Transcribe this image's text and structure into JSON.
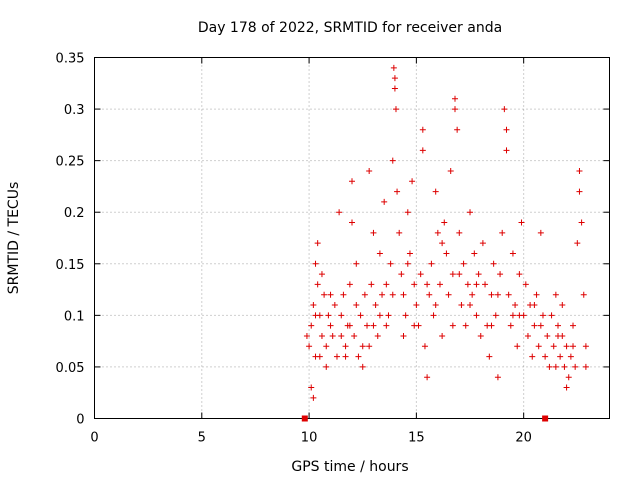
{
  "chart_data": {
    "type": "scatter",
    "title": "Day 178 of 2022, SRMTID for receiver anda",
    "xlabel": "GPS time / hours",
    "ylabel": "SRMTID / TECUs",
    "xlim": [
      0,
      24
    ],
    "ylim": [
      0,
      0.35
    ],
    "grid": true,
    "x_ticks": [
      0,
      5,
      10,
      15,
      20
    ],
    "x_tick_labels": [
      "0",
      "5",
      "10",
      "15",
      "20"
    ],
    "y_ticks": [
      0,
      0.05,
      0.1,
      0.15,
      0.2,
      0.25,
      0.3,
      0.35
    ],
    "y_tick_labels": [
      "0",
      "0.05",
      "0.1",
      "0.15",
      "0.2",
      "0.25",
      "0.3",
      "0.35"
    ],
    "series_color": "#dd0000",
    "marker": "plus",
    "markers_on_axis": [
      {
        "x": 9.8,
        "y": 0
      },
      {
        "x": 21.0,
        "y": 0
      }
    ],
    "series": [
      {
        "name": "SRMTID",
        "points": [
          [
            9.9,
            0.08
          ],
          [
            10.0,
            0.07
          ],
          [
            10.1,
            0.09
          ],
          [
            10.2,
            0.11
          ],
          [
            10.3,
            0.06
          ],
          [
            10.4,
            0.13
          ],
          [
            10.5,
            0.1
          ],
          [
            10.6,
            0.08
          ],
          [
            10.7,
            0.12
          ],
          [
            10.8,
            0.07
          ],
          [
            10.1,
            0.03
          ],
          [
            10.2,
            0.02
          ],
          [
            10.3,
            0.15
          ],
          [
            10.4,
            0.17
          ],
          [
            10.6,
            0.14
          ],
          [
            10.9,
            0.1
          ],
          [
            11.0,
            0.09
          ],
          [
            11.1,
            0.08
          ],
          [
            11.2,
            0.11
          ],
          [
            11.3,
            0.06
          ],
          [
            11.4,
            0.2
          ],
          [
            11.5,
            0.1
          ],
          [
            11.6,
            0.12
          ],
          [
            11.7,
            0.07
          ],
          [
            11.8,
            0.09
          ],
          [
            11.9,
            0.13
          ],
          [
            12.0,
            0.23
          ],
          [
            12.0,
            0.19
          ],
          [
            12.1,
            0.08
          ],
          [
            12.2,
            0.15
          ],
          [
            12.3,
            0.06
          ],
          [
            12.4,
            0.1
          ],
          [
            12.5,
            0.05
          ],
          [
            12.6,
            0.12
          ],
          [
            12.7,
            0.09
          ],
          [
            12.8,
            0.24
          ],
          [
            12.9,
            0.13
          ],
          [
            13.0,
            0.18
          ],
          [
            13.1,
            0.11
          ],
          [
            13.2,
            0.08
          ],
          [
            13.3,
            0.16
          ],
          [
            13.4,
            0.12
          ],
          [
            13.5,
            0.21
          ],
          [
            13.6,
            0.13
          ],
          [
            13.7,
            0.1
          ],
          [
            13.8,
            0.15
          ],
          [
            13.9,
            0.25
          ],
          [
            13.95,
            0.34
          ],
          [
            14.0,
            0.33
          ],
          [
            14.0,
            0.32
          ],
          [
            14.05,
            0.3
          ],
          [
            14.1,
            0.22
          ],
          [
            14.2,
            0.18
          ],
          [
            14.3,
            0.14
          ],
          [
            14.4,
            0.12
          ],
          [
            14.5,
            0.1
          ],
          [
            14.6,
            0.2
          ],
          [
            14.7,
            0.16
          ],
          [
            14.8,
            0.23
          ],
          [
            14.9,
            0.13
          ],
          [
            15.0,
            0.11
          ],
          [
            15.1,
            0.09
          ],
          [
            15.2,
            0.14
          ],
          [
            15.3,
            0.28
          ],
          [
            15.3,
            0.26
          ],
          [
            15.4,
            0.07
          ],
          [
            15.5,
            0.04
          ],
          [
            15.6,
            0.12
          ],
          [
            15.7,
            0.15
          ],
          [
            15.8,
            0.1
          ],
          [
            15.9,
            0.22
          ],
          [
            16.0,
            0.18
          ],
          [
            16.1,
            0.13
          ],
          [
            16.2,
            0.08
          ],
          [
            16.3,
            0.19
          ],
          [
            16.4,
            0.16
          ],
          [
            16.5,
            0.12
          ],
          [
            16.6,
            0.24
          ],
          [
            16.7,
            0.14
          ],
          [
            16.8,
            0.31
          ],
          [
            16.8,
            0.3
          ],
          [
            16.9,
            0.28
          ],
          [
            17.0,
            0.18
          ],
          [
            17.1,
            0.11
          ],
          [
            17.2,
            0.15
          ],
          [
            17.3,
            0.09
          ],
          [
            17.4,
            0.13
          ],
          [
            17.5,
            0.2
          ],
          [
            17.6,
            0.12
          ],
          [
            17.7,
            0.16
          ],
          [
            17.8,
            0.1
          ],
          [
            17.9,
            0.14
          ],
          [
            18.0,
            0.08
          ],
          [
            18.1,
            0.17
          ],
          [
            18.2,
            0.13
          ],
          [
            18.3,
            0.09
          ],
          [
            18.4,
            0.06
          ],
          [
            18.5,
            0.12
          ],
          [
            18.6,
            0.15
          ],
          [
            18.7,
            0.1
          ],
          [
            18.8,
            0.04
          ],
          [
            18.9,
            0.14
          ],
          [
            19.0,
            0.18
          ],
          [
            19.1,
            0.3
          ],
          [
            19.2,
            0.28
          ],
          [
            19.2,
            0.26
          ],
          [
            19.3,
            0.12
          ],
          [
            19.4,
            0.09
          ],
          [
            19.5,
            0.16
          ],
          [
            19.6,
            0.11
          ],
          [
            19.7,
            0.07
          ],
          [
            19.8,
            0.14
          ],
          [
            19.9,
            0.19
          ],
          [
            20.0,
            0.1
          ],
          [
            20.1,
            0.13
          ],
          [
            20.2,
            0.08
          ],
          [
            20.3,
            0.11
          ],
          [
            20.4,
            0.06
          ],
          [
            20.5,
            0.09
          ],
          [
            20.6,
            0.12
          ],
          [
            20.7,
            0.07
          ],
          [
            20.8,
            0.18
          ],
          [
            20.9,
            0.1
          ],
          [
            21.0,
            0.06
          ],
          [
            21.1,
            0.08
          ],
          [
            21.2,
            0.05
          ],
          [
            21.3,
            0.1
          ],
          [
            21.4,
            0.07
          ],
          [
            21.5,
            0.12
          ],
          [
            21.6,
            0.09
          ],
          [
            21.7,
            0.06
          ],
          [
            21.8,
            0.08
          ],
          [
            21.9,
            0.05
          ],
          [
            22.0,
            0.07
          ],
          [
            22.1,
            0.04
          ],
          [
            22.2,
            0.06
          ],
          [
            22.3,
            0.09
          ],
          [
            22.4,
            0.05
          ],
          [
            22.5,
            0.17
          ],
          [
            22.6,
            0.24
          ],
          [
            22.6,
            0.22
          ],
          [
            22.7,
            0.19
          ],
          [
            22.8,
            0.12
          ],
          [
            22.9,
            0.07
          ],
          [
            22.9,
            0.05
          ],
          [
            22.0,
            0.03
          ],
          [
            21.8,
            0.11
          ],
          [
            21.5,
            0.05
          ],
          [
            12.5,
            0.07
          ],
          [
            13.0,
            0.09
          ],
          [
            10.5,
            0.06
          ],
          [
            11.0,
            0.12
          ],
          [
            11.5,
            0.08
          ],
          [
            12.2,
            0.11
          ],
          [
            13.6,
            0.09
          ],
          [
            14.4,
            0.08
          ],
          [
            15.9,
            0.11
          ],
          [
            16.7,
            0.09
          ],
          [
            17.5,
            0.11
          ],
          [
            18.5,
            0.09
          ],
          [
            19.5,
            0.1
          ],
          [
            20.5,
            0.11
          ],
          [
            10.8,
            0.05
          ],
          [
            11.7,
            0.06
          ],
          [
            12.8,
            0.07
          ],
          [
            13.9,
            0.12
          ],
          [
            14.9,
            0.09
          ],
          [
            15.5,
            0.13
          ],
          [
            16.2,
            0.17
          ],
          [
            17.0,
            0.14
          ],
          [
            17.8,
            0.13
          ],
          [
            18.8,
            0.12
          ],
          [
            19.8,
            0.1
          ],
          [
            20.8,
            0.09
          ],
          [
            21.6,
            0.08
          ],
          [
            22.3,
            0.07
          ],
          [
            10.3,
            0.1
          ],
          [
            11.9,
            0.09
          ],
          [
            13.3,
            0.1
          ],
          [
            14.6,
            0.15
          ]
        ]
      }
    ]
  }
}
